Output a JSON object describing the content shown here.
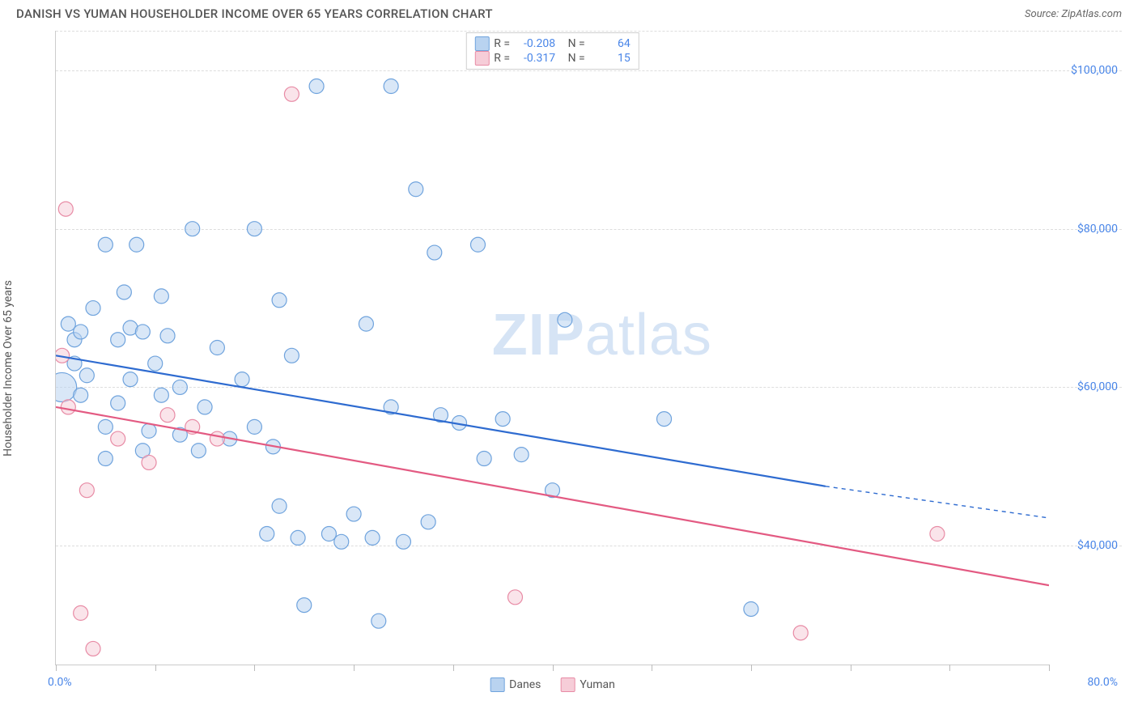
{
  "title": "DANISH VS YUMAN HOUSEHOLDER INCOME OVER 65 YEARS CORRELATION CHART",
  "source_label": "Source: ",
  "source_name": "ZipAtlas.com",
  "ylabel": "Householder Income Over 65 years",
  "watermark_a": "ZIP",
  "watermark_b": "atlas",
  "chart": {
    "type": "scatter",
    "xlim": [
      0,
      80
    ],
    "ylim": [
      25000,
      105000
    ],
    "x_min_label": "0.0%",
    "x_max_label": "80.0%",
    "y_ticks": [
      40000,
      60000,
      80000,
      100000
    ],
    "y_tick_labels": [
      "$40,000",
      "$60,000",
      "$80,000",
      "$100,000"
    ],
    "x_ticks": [
      0,
      8,
      16,
      24,
      32,
      40,
      48,
      56,
      64,
      72,
      80
    ],
    "grid_color": "#dddddd",
    "axis_color": "#cccccc",
    "background_color": "#ffffff",
    "tick_label_color": "#4a86e8",
    "marker_radius": 9,
    "marker_radius_large": 18,
    "marker_opacity": 0.55,
    "line_width": 2.2,
    "dash_pattern": "5,5",
    "series": [
      {
        "name": "Danes",
        "color_fill": "#b9d3f0",
        "color_stroke": "#6fa3dd",
        "line_color": "#2e6bd0",
        "R": "-0.208",
        "N": "64",
        "trend": {
          "x1": 0,
          "y1": 64000,
          "x2": 62,
          "y2": 47500,
          "x2_ext": 80,
          "y2_ext": 43500
        },
        "points": [
          [
            0.5,
            60000,
            18
          ],
          [
            1,
            68000,
            9
          ],
          [
            1.5,
            63000,
            9
          ],
          [
            1.5,
            66000,
            9
          ],
          [
            2,
            59000,
            9
          ],
          [
            2,
            67000,
            9
          ],
          [
            2.5,
            61500,
            9
          ],
          [
            3,
            70000,
            9
          ],
          [
            4,
            78000,
            9
          ],
          [
            4,
            55000,
            9
          ],
          [
            4,
            51000,
            9
          ],
          [
            5,
            66000,
            9
          ],
          [
            5,
            58000,
            9
          ],
          [
            5.5,
            72000,
            9
          ],
          [
            6,
            61000,
            9
          ],
          [
            6,
            67500,
            9
          ],
          [
            6.5,
            78000,
            9
          ],
          [
            7,
            67000,
            9
          ],
          [
            7,
            52000,
            9
          ],
          [
            7.5,
            54500,
            9
          ],
          [
            8,
            63000,
            9
          ],
          [
            8.5,
            59000,
            9
          ],
          [
            8.5,
            71500,
            9
          ],
          [
            9,
            66500,
            9
          ],
          [
            10,
            60000,
            9
          ],
          [
            10,
            54000,
            9
          ],
          [
            11,
            80000,
            9
          ],
          [
            11.5,
            52000,
            9
          ],
          [
            12,
            57500,
            9
          ],
          [
            13,
            65000,
            9
          ],
          [
            14,
            53500,
            9
          ],
          [
            15,
            61000,
            9
          ],
          [
            16,
            80000,
            9
          ],
          [
            16,
            55000,
            9
          ],
          [
            17,
            41500,
            9
          ],
          [
            17.5,
            52500,
            9
          ],
          [
            18,
            71000,
            9
          ],
          [
            18,
            45000,
            9
          ],
          [
            19,
            64000,
            9
          ],
          [
            19.5,
            41000,
            9
          ],
          [
            20,
            32500,
            9
          ],
          [
            21,
            98000,
            9
          ],
          [
            22,
            41500,
            9
          ],
          [
            23,
            40500,
            9
          ],
          [
            24,
            44000,
            9
          ],
          [
            25,
            68000,
            9
          ],
          [
            25.5,
            41000,
            9
          ],
          [
            26,
            30500,
            9
          ],
          [
            27,
            98000,
            9
          ],
          [
            27,
            57500,
            9
          ],
          [
            28,
            40500,
            9
          ],
          [
            29,
            85000,
            9
          ],
          [
            30,
            43000,
            9
          ],
          [
            30.5,
            77000,
            9
          ],
          [
            31,
            56500,
            9
          ],
          [
            32.5,
            55500,
            9
          ],
          [
            34,
            78000,
            9
          ],
          [
            34.5,
            51000,
            9
          ],
          [
            36,
            56000,
            9
          ],
          [
            37.5,
            51500,
            9
          ],
          [
            41,
            68500,
            9
          ],
          [
            49,
            56000,
            9
          ],
          [
            56,
            32000,
            9
          ],
          [
            40,
            47000,
            9
          ]
        ]
      },
      {
        "name": "Yuman",
        "color_fill": "#f6cdd8",
        "color_stroke": "#e88ba5",
        "line_color": "#e35a82",
        "R": "-0.317",
        "N": "15",
        "trend": {
          "x1": 0,
          "y1": 57500,
          "x2": 80,
          "y2": 35000
        },
        "points": [
          [
            0.5,
            64000,
            9
          ],
          [
            0.8,
            82500,
            9
          ],
          [
            1,
            57500,
            9
          ],
          [
            2.5,
            47000,
            9
          ],
          [
            2,
            31500,
            9
          ],
          [
            3,
            27000,
            9
          ],
          [
            5,
            53500,
            9
          ],
          [
            9,
            56500,
            9
          ],
          [
            11,
            55000,
            9
          ],
          [
            13,
            53500,
            9
          ],
          [
            19,
            97000,
            9
          ],
          [
            37,
            33500,
            9
          ],
          [
            60,
            29000,
            9
          ],
          [
            71,
            41500,
            9
          ],
          [
            7.5,
            50500,
            9
          ]
        ]
      }
    ]
  },
  "legend_stats_labels": {
    "R": "R =",
    "N": "N ="
  }
}
